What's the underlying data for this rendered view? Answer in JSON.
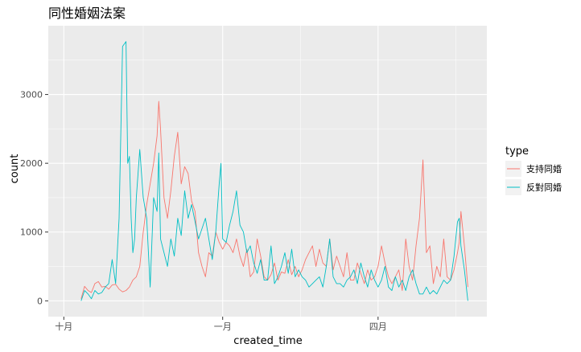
{
  "chart_data": {
    "type": "line",
    "title": "同性婚姻法案",
    "xlabel": "created_time",
    "ylabel": "count",
    "x_ticks": [
      {
        "label": "十月",
        "day": 0
      },
      {
        "label": "一月",
        "day": 92
      },
      {
        "label": "四月",
        "day": 182
      }
    ],
    "y_ticks": [
      0,
      1000,
      2000,
      3000
    ],
    "xlim": [
      -9,
      245
    ],
    "ylim": [
      -230,
      4000
    ],
    "grid": true,
    "legend": {
      "title": "type",
      "placement": "right"
    },
    "series": [
      {
        "name": "支持同婚",
        "color": "#F8766D",
        "x": [
          10,
          12,
          14,
          16,
          18,
          20,
          22,
          24,
          26,
          28,
          30,
          32,
          34,
          36,
          38,
          40,
          42,
          44,
          46,
          48,
          50,
          52,
          54,
          55,
          56,
          57,
          58,
          60,
          62,
          64,
          66,
          68,
          70,
          72,
          74,
          76,
          78,
          80,
          82,
          84,
          86,
          88,
          90,
          92,
          94,
          96,
          98,
          100,
          102,
          104,
          106,
          108,
          110,
          112,
          114,
          116,
          118,
          120,
          122,
          124,
          126,
          128,
          130,
          132,
          134,
          136,
          138,
          140,
          142,
          144,
          146,
          148,
          150,
          152,
          154,
          156,
          158,
          160,
          162,
          164,
          166,
          168,
          170,
          172,
          174,
          176,
          178,
          180,
          182,
          184,
          186,
          188,
          190,
          192,
          194,
          196,
          198,
          200,
          202,
          204,
          206,
          208,
          210,
          212,
          214,
          216,
          218,
          220,
          222,
          224,
          226,
          228,
          229,
          230,
          232,
          234
        ],
        "y": [
          30,
          210,
          150,
          120,
          250,
          280,
          200,
          210,
          170,
          230,
          240,
          170,
          130,
          150,
          200,
          300,
          350,
          500,
          1000,
          1400,
          1700,
          2000,
          2400,
          2900,
          2500,
          2000,
          1500,
          1200,
          1600,
          2100,
          2450,
          1700,
          1950,
          1850,
          1450,
          1300,
          700,
          500,
          350,
          700,
          650,
          1000,
          850,
          750,
          850,
          800,
          700,
          900,
          650,
          500,
          750,
          350,
          420,
          900,
          650,
          350,
          300,
          380,
          550,
          300,
          420,
          400,
          600,
          380,
          500,
          350,
          450,
          600,
          700,
          800,
          500,
          750,
          550,
          500,
          900,
          450,
          650,
          500,
          350,
          700,
          300,
          300,
          550,
          400,
          250,
          450,
          300,
          350,
          500,
          800,
          550,
          350,
          250,
          350,
          450,
          150,
          900,
          500,
          300,
          800,
          1200,
          2050,
          700,
          800,
          250,
          500,
          350,
          900,
          350,
          300,
          450,
          700,
          850,
          1300,
          800,
          200
        ]
      },
      {
        "name": "反對同婚",
        "color": "#00BFC4",
        "x": [
          10,
          12,
          14,
          16,
          18,
          20,
          22,
          24,
          26,
          28,
          30,
          32,
          34,
          36,
          37,
          38,
          39,
          40,
          41,
          42,
          44,
          46,
          48,
          50,
          52,
          54,
          55,
          56,
          58,
          60,
          62,
          64,
          66,
          68,
          70,
          72,
          74,
          76,
          78,
          80,
          82,
          84,
          86,
          88,
          90,
          91,
          92,
          94,
          96,
          98,
          100,
          102,
          104,
          106,
          108,
          110,
          112,
          114,
          116,
          118,
          120,
          122,
          124,
          126,
          128,
          130,
          132,
          134,
          136,
          138,
          140,
          142,
          144,
          146,
          148,
          150,
          152,
          154,
          156,
          158,
          160,
          162,
          164,
          166,
          168,
          170,
          172,
          174,
          176,
          178,
          180,
          182,
          184,
          186,
          188,
          190,
          192,
          194,
          196,
          198,
          200,
          202,
          204,
          206,
          208,
          210,
          212,
          214,
          216,
          218,
          220,
          222,
          224,
          226,
          228,
          229,
          230,
          232,
          234
        ],
        "y": [
          0,
          150,
          100,
          30,
          150,
          100,
          120,
          200,
          250,
          600,
          250,
          1200,
          3700,
          3770,
          2000,
          2100,
          1200,
          700,
          900,
          1500,
          2200,
          1500,
          1200,
          200,
          1500,
          1300,
          2150,
          900,
          700,
          500,
          900,
          650,
          1200,
          950,
          1600,
          1200,
          1400,
          1150,
          900,
          1050,
          1200,
          900,
          600,
          1000,
          1700,
          2000,
          900,
          850,
          1100,
          1300,
          1600,
          1100,
          1000,
          700,
          800,
          550,
          400,
          600,
          300,
          300,
          800,
          250,
          350,
          500,
          700,
          400,
          750,
          350,
          450,
          350,
          300,
          200,
          250,
          300,
          350,
          200,
          500,
          900,
          350,
          250,
          250,
          200,
          300,
          350,
          450,
          250,
          550,
          350,
          200,
          450,
          300,
          200,
          300,
          500,
          200,
          150,
          350,
          200,
          300,
          150,
          350,
          450,
          250,
          100,
          100,
          200,
          100,
          150,
          100,
          200,
          300,
          250,
          300,
          650,
          1150,
          1200,
          800,
          450,
          0
        ]
      }
    ]
  }
}
